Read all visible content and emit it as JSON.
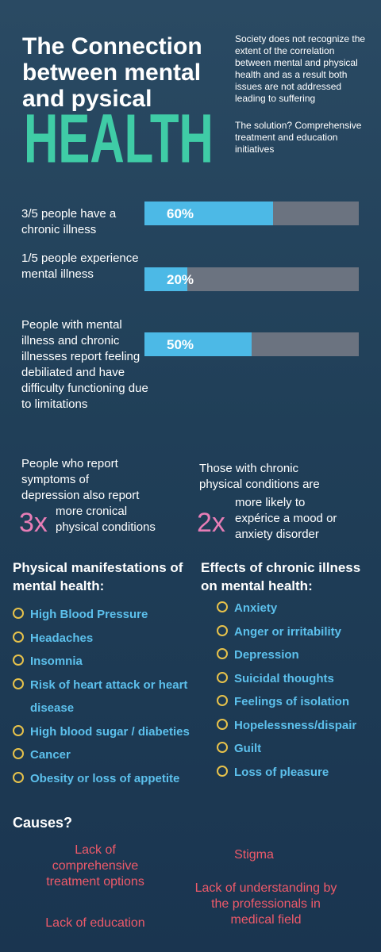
{
  "header": {
    "title": "The Connection between mental and pysical",
    "highlight": "HEALTH",
    "intro": "Society does not recognize the extent of the correlation between mental and physical health and as a result both issues are not addressed leading to suffering",
    "solution": "The solution? Comprehensive treatment and education initiatives"
  },
  "stats": {
    "xlim": [
      0,
      100
    ],
    "items": [
      {
        "text": "3/5 people have a chronic illness",
        "value": 60,
        "value_label": "60%"
      },
      {
        "text": "1/5 people experience mental illness",
        "value": 20,
        "value_label": "20%"
      },
      {
        "text": "People with mental illness and chronic illnesses report feeling debiliated and have difficulty functioning due to limitations",
        "value": 50,
        "value_label": "50%"
      }
    ]
  },
  "multipliers": [
    {
      "before": "People who report symptoms of depression also report",
      "multiplier": "3x",
      "after": "more cronical physical conditions"
    },
    {
      "before": "Those with chronic physical conditions are",
      "multiplier": "2x",
      "after": "more likely to expérice a mood or anxiety disorder"
    }
  ],
  "physical": {
    "title": "Physical manifestations of mental health:",
    "items": [
      "High Blood Pressure",
      "Headaches",
      "Insomnia",
      "Risk of heart attack or heart disease",
      "High blood sugar / diabeties",
      "Cancer",
      "Obesity or loss of appetite"
    ]
  },
  "effects": {
    "title": "Effects of chronic illness on mental health:",
    "items": [
      "Anxiety",
      "Anger  or irritability",
      "Depression",
      "Suicidal thoughts",
      "Feelings of isolation",
      "Hopelessness/dispair",
      "Guilt",
      "Loss of pleasure"
    ]
  },
  "causes": {
    "title": "Causes?",
    "items": [
      "Lack of comprehensive treatment options",
      "Stigma",
      "Lack of understanding by the professionals in medical field",
      "Lack of education"
    ]
  }
}
